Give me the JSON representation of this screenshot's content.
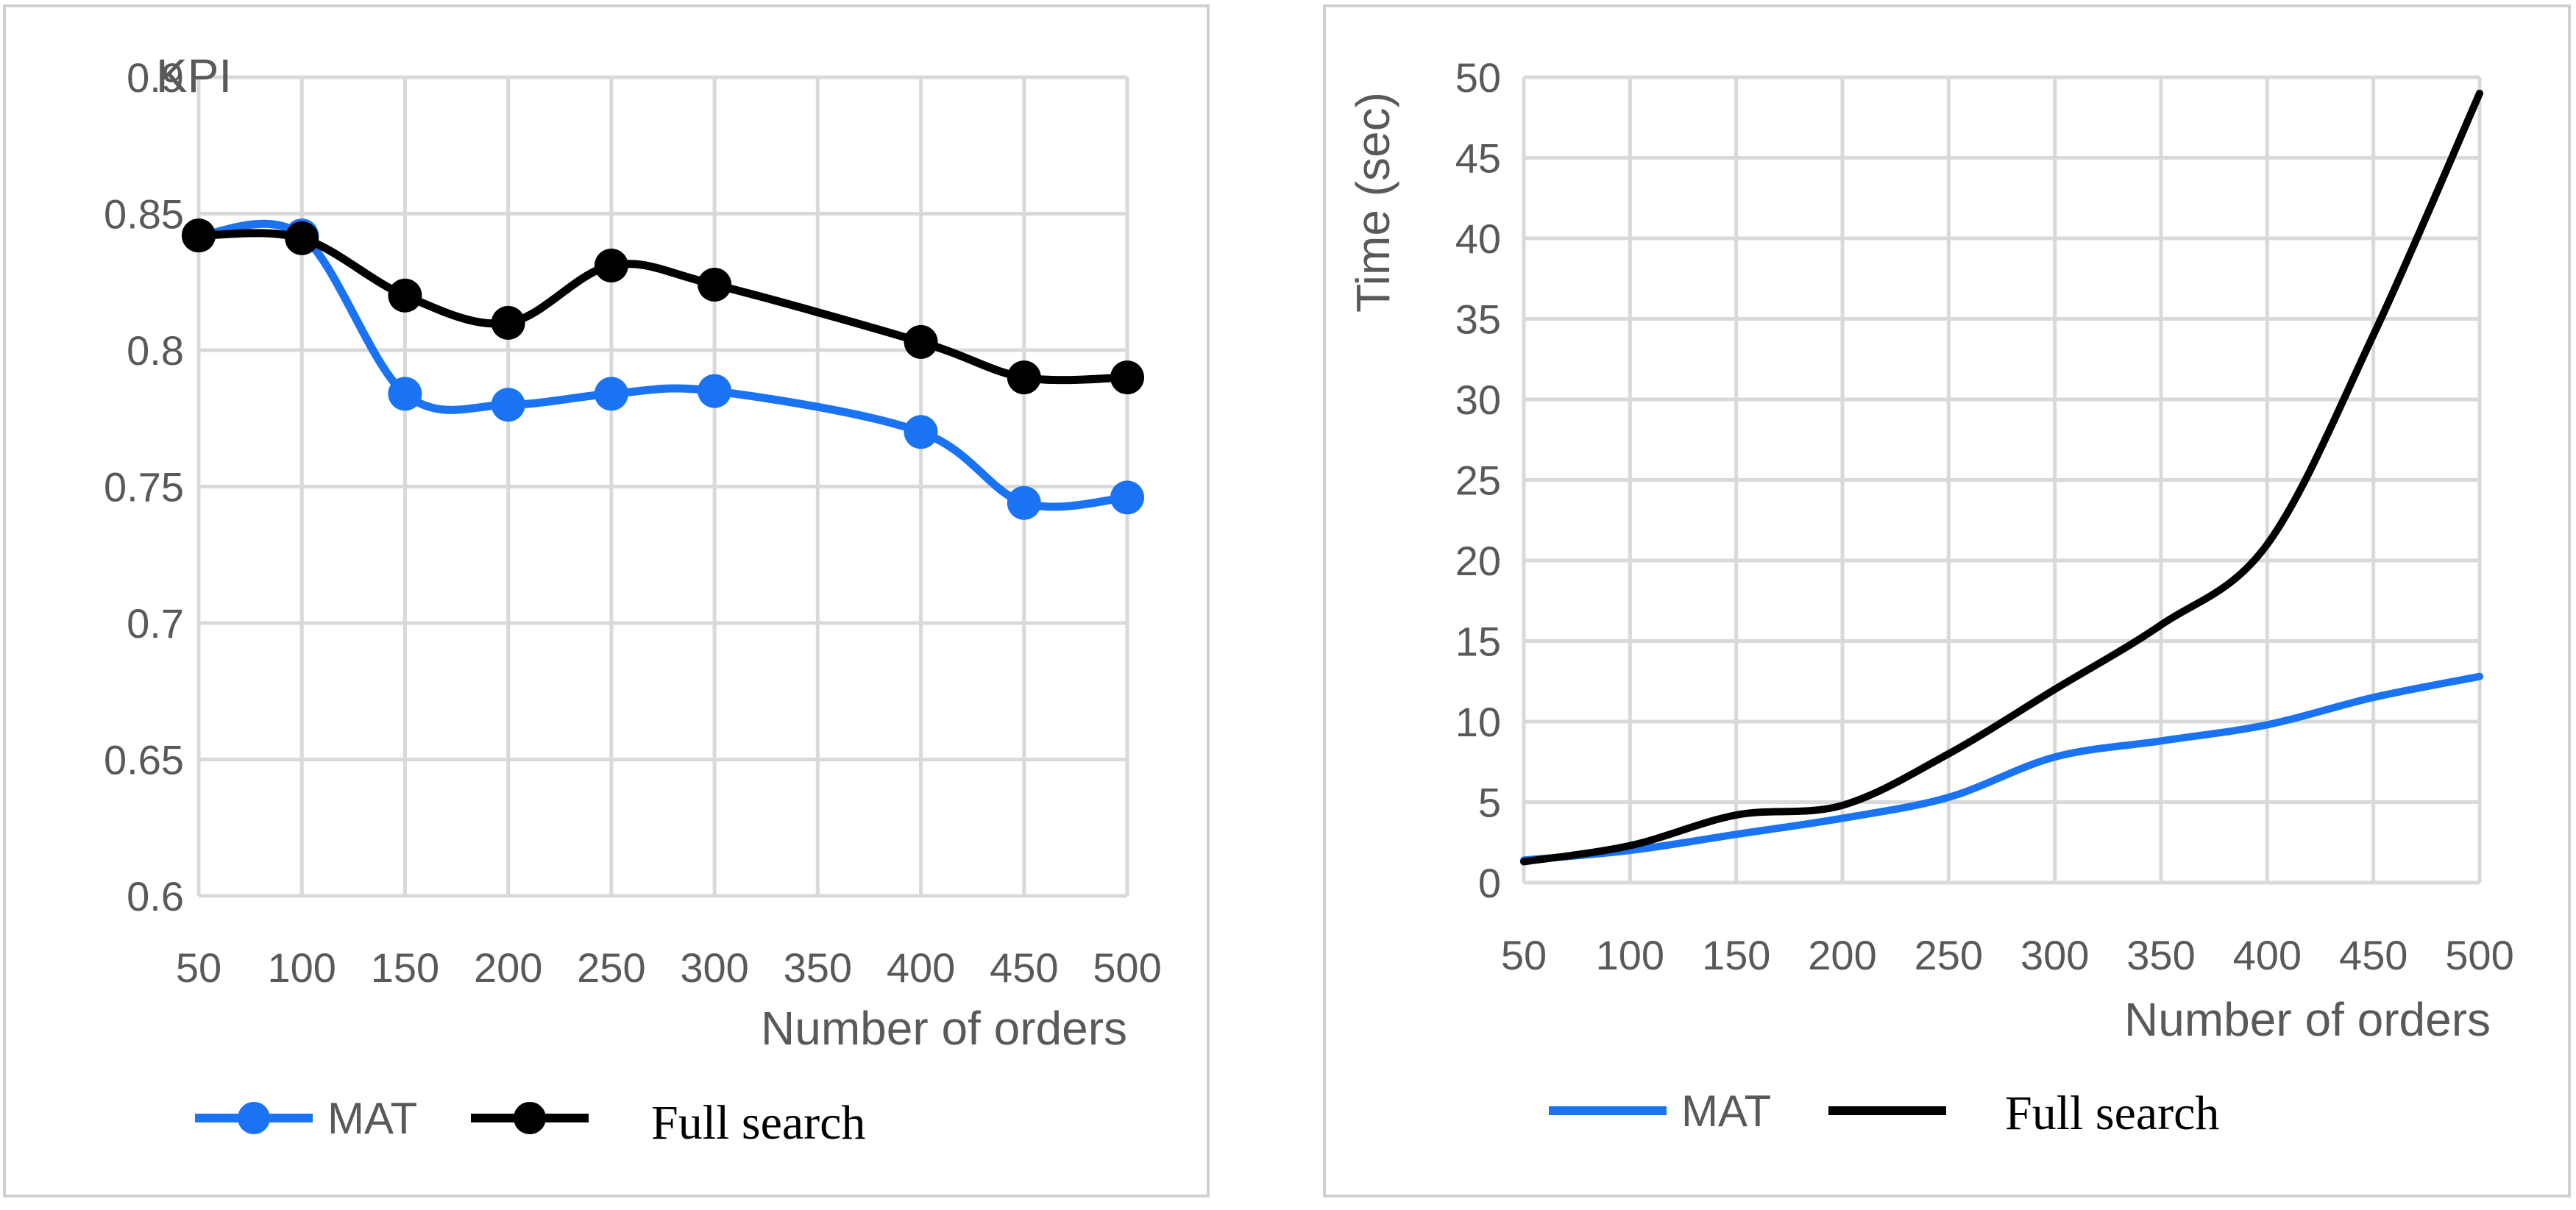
{
  "colors": {
    "mat": "#1a73f2",
    "full_search": "#000000",
    "grid": "#d9d9d9",
    "text": "#595959"
  },
  "chart_data": [
    {
      "type": "line",
      "title": "",
      "ylabel": "KPI",
      "xlabel": "Number of orders",
      "x": [
        50,
        100,
        150,
        200,
        250,
        300,
        350,
        400,
        450,
        500
      ],
      "x_tick_labels": [
        "50",
        "100",
        "150",
        "200",
        "250",
        "300",
        "350",
        "400",
        "450",
        "500"
      ],
      "ylim": [
        0.6,
        0.9
      ],
      "y_tick_labels": [
        "0.6",
        "0.65",
        "0.7",
        "0.75",
        "0.8",
        "0.85",
        "0.9"
      ],
      "grid": true,
      "legend": "bottom",
      "markers": true,
      "series": [
        {
          "name": "MAT",
          "x": [
            50,
            100,
            150,
            200,
            250,
            300,
            400,
            450,
            500
          ],
          "values": [
            0.842,
            0.842,
            0.784,
            0.78,
            0.784,
            0.785,
            0.77,
            0.744,
            0.746
          ]
        },
        {
          "name": "Full search",
          "x": [
            50,
            100,
            150,
            200,
            250,
            300,
            400,
            450,
            500
          ],
          "values": [
            0.842,
            0.841,
            0.82,
            0.81,
            0.831,
            0.824,
            0.803,
            0.79,
            0.79
          ]
        }
      ]
    },
    {
      "type": "line",
      "title": "",
      "ylabel": "Time (sec)",
      "xlabel": "Number of orders",
      "x": [
        50,
        100,
        150,
        200,
        250,
        300,
        350,
        400,
        450,
        500
      ],
      "x_tick_labels": [
        "50",
        "100",
        "150",
        "200",
        "250",
        "300",
        "350",
        "400",
        "450",
        "500"
      ],
      "ylim": [
        0,
        50
      ],
      "y_tick_labels": [
        "0",
        "5",
        "10",
        "15",
        "20",
        "25",
        "30",
        "35",
        "40",
        "45",
        "50"
      ],
      "grid": true,
      "legend": "bottom",
      "markers": false,
      "series": [
        {
          "name": "MAT",
          "x": [
            50,
            100,
            150,
            200,
            250,
            300,
            350,
            400,
            450,
            500
          ],
          "values": [
            1.4,
            2.0,
            3.0,
            4.0,
            5.3,
            7.8,
            8.8,
            9.8,
            11.5,
            12.8
          ]
        },
        {
          "name": "Full search",
          "x": [
            50,
            100,
            150,
            200,
            250,
            300,
            350,
            400,
            450,
            500
          ],
          "values": [
            1.3,
            2.3,
            4.2,
            4.8,
            8.0,
            12.0,
            16.0,
            21.0,
            34.0,
            49.0
          ]
        }
      ]
    }
  ]
}
